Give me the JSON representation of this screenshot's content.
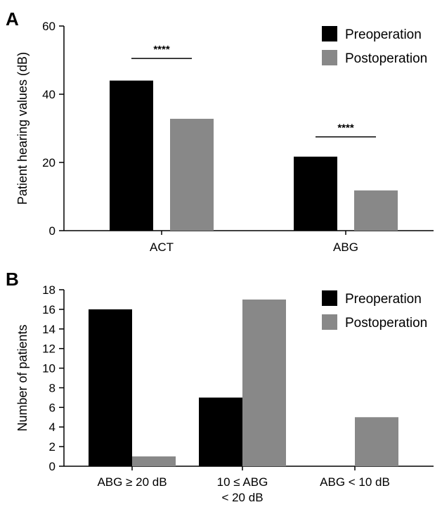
{
  "chart_data": [
    {
      "panel": "A",
      "type": "bar",
      "categories": [
        "ACT",
        "ABG"
      ],
      "series": [
        {
          "name": "Preoperation",
          "values": [
            44,
            21.7
          ],
          "color": "#000000"
        },
        {
          "name": "Postoperation",
          "values": [
            32.8,
            11.8
          ],
          "color": "#888888"
        }
      ],
      "ylabel": "Patient hearing values (dB)",
      "ylim": [
        0,
        60
      ],
      "yticks": [
        0,
        20,
        40,
        60
      ],
      "legend": "top-right",
      "grid": false,
      "annotations": [
        {
          "text": "****",
          "category": "ACT",
          "y": 50.5
        },
        {
          "text": "****",
          "category": "ABG",
          "y": 27.5
        }
      ]
    },
    {
      "panel": "B",
      "type": "bar",
      "categories": [
        "ABG ≥ 20 dB",
        "10 ≤ ABG\n< 20 dB",
        "ABG < 10 dB"
      ],
      "series": [
        {
          "name": "Preoperation",
          "values": [
            16,
            7,
            0
          ],
          "color": "#000000"
        },
        {
          "name": "Postoperation",
          "values": [
            1,
            17,
            5
          ],
          "color": "#888888"
        }
      ],
      "ylabel": "Number of patients",
      "ylim": [
        0,
        18
      ],
      "yticks": [
        0,
        2,
        4,
        6,
        8,
        10,
        12,
        14,
        16,
        18
      ],
      "legend": "top-right",
      "grid": false
    }
  ]
}
